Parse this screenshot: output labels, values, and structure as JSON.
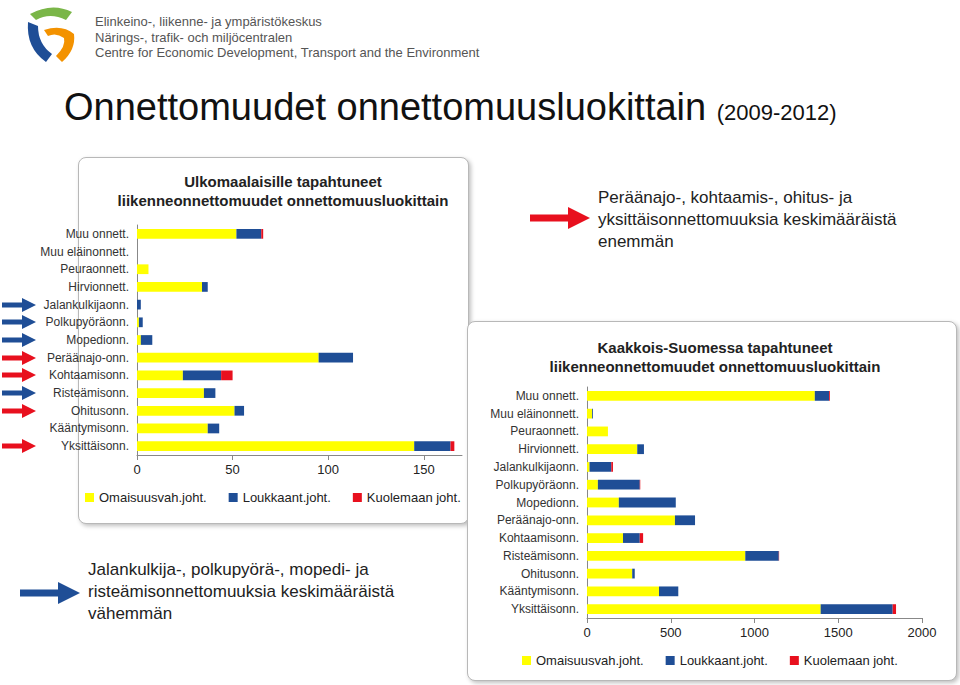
{
  "header": {
    "lines": [
      "Elinkeino-, liikenne- ja ympäristökeskus",
      "Närings-, trafik- och miljöcentralen",
      "Centre for Economic Development, Transport and the Environment"
    ]
  },
  "title": "Onnettomuudet onnettomuusluokittain",
  "subtitle": "(2009-2012)",
  "annotations": [
    {
      "text": "Peräänajo-, kohtaamis-, ohitus- ja yksittäisonnettomuuksia keskimääräistä enemmän",
      "color": "#e8101e",
      "categories": [
        "Peräänajo-onn.",
        "Kohtaamisonn.",
        "Ohitusonn.",
        "Yksittäisonn."
      ]
    },
    {
      "text": "Jalankulkija-, polkupyörä-, mopedi- ja risteämisonnettomuuksia keskimääräistä vähemmän",
      "color": "#1f4e96",
      "categories": [
        "Jalankulkijaonn.",
        "Polkupyöräonn.",
        "Mopedionn.",
        "Risteämisonn."
      ]
    }
  ],
  "chart_data": [
    {
      "type": "bar",
      "title": "Ulkomaalaisille tapahtuneet\nliikenneonnettomuudet onnettomuusluokittain",
      "orientation": "horizontal",
      "stacked": true,
      "grid": false,
      "legend": "bottom",
      "categories": [
        "Muu onnett.",
        "Muu eläinonnett.",
        "Peuraonnett.",
        "Hirvionnett.",
        "Jalankulkijaonn.",
        "Polkupyöräonn.",
        "Mopedionn.",
        "Peräänajo-onn.",
        "Kohtaamisonn.",
        "Risteämisonn.",
        "Ohitusonn.",
        "Kääntymisonn.",
        "Yksittäisonn."
      ],
      "series": [
        {
          "name": "Omaisuusvah.joht.",
          "color": "#ffff00",
          "values": [
            52,
            0,
            6,
            34,
            0,
            1,
            2,
            95,
            24,
            35,
            51,
            37,
            145
          ]
        },
        {
          "name": "Loukkaant.joht.",
          "color": "#1f4e96",
          "values": [
            13,
            0,
            0,
            3,
            2,
            2,
            6,
            18,
            20,
            6,
            5,
            6,
            19
          ]
        },
        {
          "name": "Kuolemaan joht.",
          "color": "#e8101e",
          "values": [
            1,
            0,
            0,
            0,
            0,
            0,
            0,
            0,
            6,
            0,
            0,
            0,
            2
          ]
        }
      ],
      "xlim": [
        0,
        170
      ],
      "xticks": [
        0,
        50,
        100,
        150
      ]
    },
    {
      "type": "bar",
      "title": "Kaakkois-Suomessa tapahtuneet\nliikenneonnettomuudet onnettomuusluokittain",
      "orientation": "horizontal",
      "stacked": true,
      "grid": false,
      "legend": "bottom",
      "categories": [
        "Muu onnett.",
        "Muu eläinonnett.",
        "Peuraonnett.",
        "Hirvionnett.",
        "Jalankulkijaonn.",
        "Polkupyöräonn.",
        "Mopedionn.",
        "Peräänajo-onn.",
        "Kohtaamisonn.",
        "Risteämisonn.",
        "Ohitusonn.",
        "Kääntymisonn.",
        "Yksittäisonn."
      ],
      "series": [
        {
          "name": "Omaisuusvah.joht.",
          "color": "#ffff00",
          "values": [
            1360,
            30,
            125,
            300,
            15,
            65,
            190,
            525,
            215,
            945,
            270,
            430,
            1395
          ]
        },
        {
          "name": "Loukkaant.joht.",
          "color": "#1f4e96",
          "values": [
            85,
            5,
            0,
            40,
            130,
            250,
            340,
            120,
            100,
            200,
            15,
            115,
            430
          ]
        },
        {
          "name": "Kuolemaan joht.",
          "color": "#e8101e",
          "values": [
            5,
            0,
            0,
            0,
            10,
            3,
            0,
            0,
            20,
            2,
            0,
            0,
            20
          ]
        }
      ],
      "xlim": [
        0,
        2000
      ],
      "xticks": [
        0,
        500,
        1000,
        1500,
        2000
      ]
    }
  ]
}
